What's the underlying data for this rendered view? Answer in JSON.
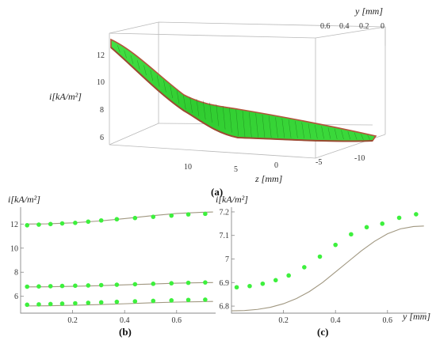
{
  "panel_a": {
    "label": "(a)",
    "zlabel": "i[kA/m²]",
    "xlabel": "z [mm]",
    "ylabel": "y [mm]",
    "x_ticks": [
      "10",
      "5",
      "0",
      "-5",
      "-10"
    ],
    "y_ticks": [
      "0.6",
      "0.4",
      "0.2",
      "0"
    ],
    "z_ticks": [
      "12",
      "10",
      "8",
      "6"
    ],
    "colors": {
      "surface": "#35d835",
      "mesh": "#1a7a1a",
      "edge": "#b2553c"
    }
  },
  "chart_data": [
    {
      "type": "scatter",
      "label": "(b)",
      "ylabel": "i[kA/m²]",
      "xlabel": "",
      "xlim": [
        0,
        0.75
      ],
      "ylim": [
        4.6,
        13.4
      ],
      "x_ticks": [
        "0.2",
        "0.4",
        "0.6"
      ],
      "y_ticks": [
        "12",
        "10",
        "8",
        "6"
      ],
      "x_tick_vals": [
        0.2,
        0.4,
        0.6
      ],
      "y_tick_vals": [
        12,
        10,
        8,
        6
      ],
      "series": [
        {
          "x": [
            0.025,
            0.07,
            0.115,
            0.16,
            0.21,
            0.26,
            0.31,
            0.37,
            0.44,
            0.51,
            0.58,
            0.645,
            0.71
          ],
          "y": [
            11.9,
            11.95,
            12.0,
            12.05,
            12.1,
            12.2,
            12.3,
            12.4,
            12.5,
            12.6,
            12.7,
            12.8,
            12.85
          ],
          "fit_x": [
            0.02,
            0.1,
            0.2,
            0.3,
            0.4,
            0.5,
            0.6,
            0.7,
            0.74
          ],
          "fit_y": [
            12.0,
            12.02,
            12.1,
            12.25,
            12.45,
            12.68,
            12.88,
            12.98,
            13.0
          ]
        },
        {
          "x": [
            0.025,
            0.07,
            0.115,
            0.16,
            0.21,
            0.26,
            0.31,
            0.37,
            0.44,
            0.51,
            0.58,
            0.645,
            0.71
          ],
          "y": [
            6.8,
            6.82,
            6.84,
            6.86,
            6.88,
            6.9,
            6.93,
            6.96,
            7.0,
            7.04,
            7.08,
            7.12,
            7.15
          ],
          "fit_x": [
            0.02,
            0.1,
            0.2,
            0.3,
            0.4,
            0.5,
            0.6,
            0.7,
            0.74
          ],
          "fit_y": [
            6.78,
            6.79,
            6.83,
            6.88,
            6.95,
            7.02,
            7.09,
            7.13,
            7.14
          ]
        },
        {
          "x": [
            0.025,
            0.07,
            0.115,
            0.16,
            0.21,
            0.26,
            0.31,
            0.37,
            0.44,
            0.51,
            0.58,
            0.645,
            0.71
          ],
          "y": [
            5.3,
            5.33,
            5.36,
            5.39,
            5.42,
            5.46,
            5.5,
            5.54,
            5.58,
            5.62,
            5.66,
            5.7,
            5.72
          ],
          "fit_x": [
            0.02,
            0.1,
            0.2,
            0.3,
            0.4,
            0.5,
            0.6,
            0.7,
            0.74
          ],
          "fit_y": [
            5.2,
            5.21,
            5.25,
            5.31,
            5.38,
            5.46,
            5.52,
            5.56,
            5.57
          ]
        }
      ]
    },
    {
      "type": "scatter",
      "label": "(c)",
      "ylabel": "i[kA/m²]",
      "xlabel": "y [mm]",
      "xlim": [
        0,
        0.75
      ],
      "ylim": [
        6.77,
        7.22
      ],
      "x_ticks": [
        "0.2",
        "0.4",
        "0.6"
      ],
      "y_ticks": [
        "7.2",
        "7.1",
        "7",
        "6.9",
        "6.8"
      ],
      "x_tick_vals": [
        0.2,
        0.4,
        0.6
      ],
      "y_tick_vals": [
        7.2,
        7.1,
        7.0,
        6.9,
        6.8
      ],
      "series": [
        {
          "x": [
            0.02,
            0.07,
            0.12,
            0.17,
            0.22,
            0.28,
            0.34,
            0.4,
            0.46,
            0.52,
            0.58,
            0.645,
            0.71
          ],
          "y": [
            6.88,
            6.885,
            6.895,
            6.91,
            6.93,
            6.965,
            7.01,
            7.06,
            7.105,
            7.135,
            7.15,
            7.175,
            7.19
          ],
          "fit_x": [
            0.0,
            0.05,
            0.1,
            0.15,
            0.2,
            0.25,
            0.3,
            0.35,
            0.4,
            0.45,
            0.5,
            0.55,
            0.6,
            0.65,
            0.7,
            0.74
          ],
          "fit_y": [
            6.78,
            6.781,
            6.786,
            6.795,
            6.81,
            6.832,
            6.862,
            6.9,
            6.945,
            6.99,
            7.035,
            7.075,
            7.107,
            7.128,
            7.138,
            7.14
          ]
        }
      ]
    }
  ]
}
